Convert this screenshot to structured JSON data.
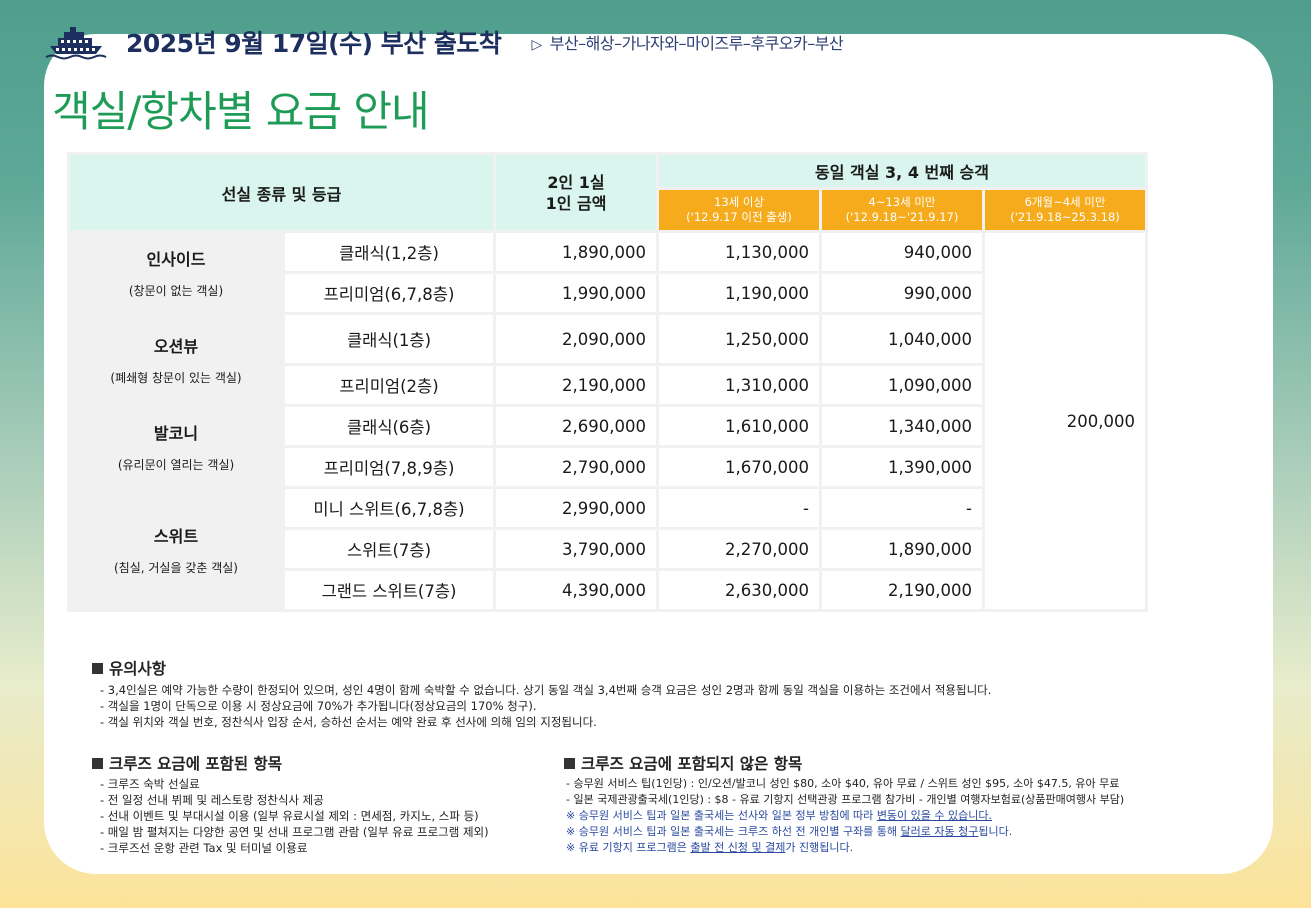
{
  "header": {
    "title": "2025년 9월 17일(수) 부산 출도착",
    "route_marker": "▷",
    "route": "부산–해상–가나자와–마이즈루–후쿠오카–부산",
    "page_title": "객실/항차별 요금 안내"
  },
  "table": {
    "col_type": "선실 종류 및 등급",
    "col_base": "2인 1실\n1인 금액",
    "col_extra": "동일 객실 3, 4 번째 승객",
    "age_groups": [
      {
        "label": "13세 이상",
        "sub": "('12.9.17 이전 출생)"
      },
      {
        "label": "4~13세 미만",
        "sub": "('12.9.18~'21.9.17)"
      },
      {
        "label": "6개월~4세 미만",
        "sub": "('21.9.18~25.3.18)"
      }
    ],
    "infant_price": "200,000",
    "groups": [
      {
        "name": "인사이드",
        "desc": "(창문이 없는 객실)",
        "rows": [
          {
            "sub": "클래식(1,2층)",
            "base": "1,890,000",
            "a13": "1,130,000",
            "a4": "940,000"
          },
          {
            "sub": "프리미엄(6,7,8층)",
            "base": "1,990,000",
            "a13": "1,190,000",
            "a4": "990,000"
          }
        ]
      },
      {
        "name": "오션뷰",
        "desc": "(폐쇄형 창문이 있는 객실)",
        "rows": [
          {
            "sub": "클래식(1층)",
            "base": "2,090,000",
            "a13": "1,250,000",
            "a4": "1,040,000"
          },
          {
            "sub": "프리미엄(2층)",
            "base": "2,190,000",
            "a13": "1,310,000",
            "a4": "1,090,000"
          }
        ]
      },
      {
        "name": "발코니",
        "desc": "(유리문이 열리는 객실)",
        "rows": [
          {
            "sub": "클래식(6층)",
            "base": "2,690,000",
            "a13": "1,610,000",
            "a4": "1,340,000"
          },
          {
            "sub": "프리미엄(7,8,9층)",
            "base": "2,790,000",
            "a13": "1,670,000",
            "a4": "1,390,000"
          }
        ]
      },
      {
        "name": "스위트",
        "desc": "(침실, 거실을 갖춘 객실)",
        "rows": [
          {
            "sub": "미니 스위트(6,7,8층)",
            "base": "2,990,000",
            "a13": "-",
            "a4": "-"
          },
          {
            "sub": "스위트(7층)",
            "base": "3,790,000",
            "a13": "2,270,000",
            "a4": "1,890,000"
          },
          {
            "sub": "그랜드 스위트(7층)",
            "base": "4,390,000",
            "a13": "2,630,000",
            "a4": "2,190,000"
          }
        ]
      }
    ]
  },
  "notice": {
    "title": "유의사항",
    "items": [
      "-  3,4인실은 예약 가능한 수량이 한정되어 있으며, 성인 4명이 함께 숙박할 수 없습니다. 상기 동일 객실 3,4번째 승객 요금은 성인 2명과 함께 동일 객실을 이용하는 조건에서 적용됩니다.",
      "-  객실을 1명이 단독으로 이용 시 정상요금에 70%가 추가됩니다(정상요금의 170% 청구).",
      "-  객실 위치와 객실 번호, 정찬식사 입장 순서, 승하선 순서는 예약 완료 후 선사에 의해 임의 지정됩니다."
    ]
  },
  "included": {
    "title": "크루즈 요금에 포함된 항목",
    "items": [
      "-  크루즈 숙박 선실료",
      "-  전 일정 선내 뷔페 및 레스토랑 정찬식사 제공",
      "-  선내 이벤트 및 부대시설 이용 (일부 유료시설 제외 : 면세점, 카지노, 스파 등)",
      "-  매일 밤 펼쳐지는 다양한 공연 및 선내 프로그램 관람 (일부 유료 프로그램 제외)",
      "-  크루즈선 운항 관련 Tax 및 터미널 이용료"
    ]
  },
  "excluded": {
    "title": "크루즈 요금에 포함되지 않은 항목",
    "items": [
      "-    승무원 서비스 팁(1인당) : 인/오션/발코니 성인 $80, 소아 $40, 유아 무료 / 스위트 성인 $95, 소아 $47.5, 유아 무료",
      "-    일본 국제관광출국세(1인당) : $8     - 유료 기항지 선택관광 프로그램 참가비    - 개인별 여행자보험료(상품판매여행사 부담)"
    ],
    "notes": [
      {
        "pre": "※ 승무원 서비스 팁과 일본 출국세는 선사와 일본 정부 방침에 따라 ",
        "u": "변동이 있을 수 있습니다.",
        "post": ""
      },
      {
        "pre": "※ 승무원 서비스 팁과 일본 출국세는 크루즈 하선 전 개인별 구좌를 통해 ",
        "u": "달러로 자동 청구",
        "post": "됩니다."
      },
      {
        "pre": "※ 유료 기항지 프로그램은 ",
        "u": "출발 전 신청 및 결제",
        "post": "가 진행됩니다."
      }
    ]
  },
  "colors": {
    "accent_green": "#1e9c57",
    "navy": "#1d2f5e",
    "orange": "#f5ab1c",
    "mint": "#d9f5ee"
  }
}
